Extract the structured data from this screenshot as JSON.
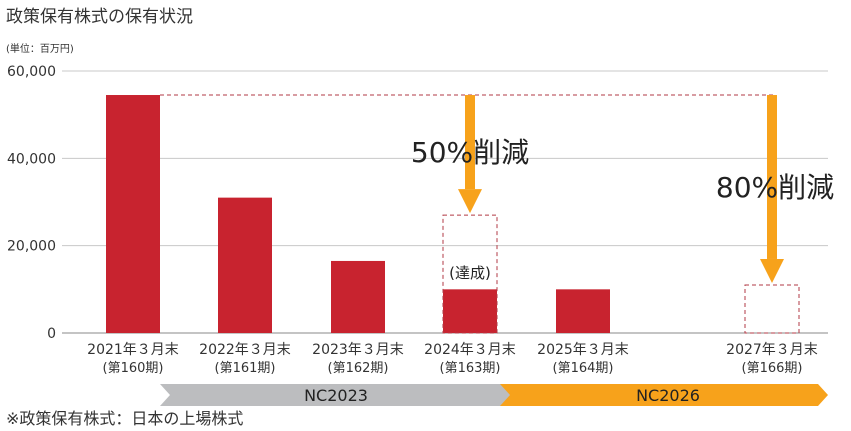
{
  "title": "政策保有株式の保有状況",
  "unit_label": "(単位：百万円)",
  "footnote": "※政策保有株式：日本の上場株式",
  "colors": {
    "bar": "#c8232f",
    "arrow": "#f7a21b",
    "phase1": "#bcbdbf",
    "phase2": "#f7a21b",
    "dashed": "#b23a44",
    "grid": "#c8c8c8"
  },
  "chart_data": {
    "type": "bar",
    "ylim": [
      0,
      60000
    ],
    "yticks": [
      "0",
      "20,000",
      "40,000",
      "60,000"
    ],
    "ytick_values": [
      0,
      20000,
      40000,
      60000
    ],
    "grid": true,
    "categories": [
      {
        "line1": "2021年３月末",
        "line2": "(第160期)"
      },
      {
        "line1": "2022年３月末",
        "line2": "(第161期)"
      },
      {
        "line1": "2023年３月末",
        "line2": "(第162期)"
      },
      {
        "line1": "2024年３月末",
        "line2": "(第163期)"
      },
      {
        "line1": "2025年３月末",
        "line2": "(第164期)"
      },
      {
        "line1": "2027年３月末",
        "line2": "(第166期)"
      }
    ],
    "values": [
      54500,
      31000,
      16500,
      10000,
      10000,
      null
    ],
    "targets": [
      {
        "category_index": 3,
        "value": 27000,
        "label": "50%削減",
        "note": "(達成)"
      },
      {
        "category_index": 5,
        "value": 11000,
        "label": "80%削減"
      }
    ],
    "baseline_value": 54500,
    "phases": [
      {
        "label": "NC2023"
      },
      {
        "label": "NC2026"
      }
    ]
  }
}
